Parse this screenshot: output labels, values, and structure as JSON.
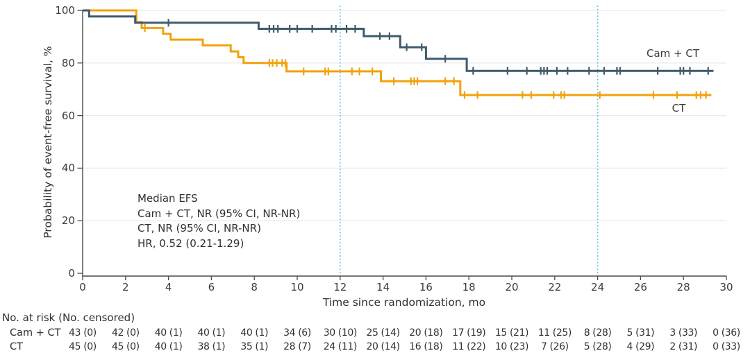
{
  "chart_data": {
    "type": "line",
    "subtype": "kaplan-meier-step",
    "title": "",
    "xlabel": "Time since randomization, mo",
    "ylabel": "Probability of event-free survival, %",
    "xlim": [
      0,
      30
    ],
    "ylim": [
      0,
      100
    ],
    "x_ticks": [
      0,
      2,
      4,
      6,
      8,
      10,
      12,
      14,
      16,
      18,
      20,
      22,
      24,
      26,
      28,
      30
    ],
    "y_ticks": [
      100,
      80,
      60,
      40,
      20,
      0
    ],
    "grid": "horizontal-light",
    "reference_lines_x": [
      12,
      24
    ],
    "reference_line_color": "#59bfe8",
    "series": [
      {
        "name": "Cam + CT",
        "color": "#3e5a6b",
        "steps": [
          [
            0,
            100
          ],
          [
            0.3,
            100
          ],
          [
            0.3,
            97.7
          ],
          [
            2.45,
            97.7
          ],
          [
            2.45,
            95.3
          ],
          [
            8.2,
            95.3
          ],
          [
            8.2,
            93.0
          ],
          [
            13.1,
            93.0
          ],
          [
            13.1,
            90.2
          ],
          [
            14.8,
            90.2
          ],
          [
            14.8,
            86.0
          ],
          [
            16.0,
            86.0
          ],
          [
            16.0,
            81.6
          ],
          [
            17.9,
            81.6
          ],
          [
            17.9,
            77.0
          ],
          [
            29.4,
            77.0
          ]
        ],
        "censor_marks": [
          [
            4.0,
            95.3
          ],
          [
            8.7,
            93.0
          ],
          [
            8.9,
            93.0
          ],
          [
            9.1,
            93.0
          ],
          [
            9.65,
            93.0
          ],
          [
            10.0,
            93.0
          ],
          [
            10.7,
            93.0
          ],
          [
            11.6,
            93.0
          ],
          [
            11.8,
            93.0
          ],
          [
            12.3,
            93.0
          ],
          [
            12.7,
            93.0
          ],
          [
            13.85,
            90.2
          ],
          [
            14.3,
            90.2
          ],
          [
            15.1,
            86.0
          ],
          [
            15.8,
            86.0
          ],
          [
            16.9,
            81.6
          ],
          [
            18.2,
            77.0
          ],
          [
            19.8,
            77.0
          ],
          [
            20.7,
            77.0
          ],
          [
            21.35,
            77.0
          ],
          [
            21.5,
            77.0
          ],
          [
            21.65,
            77.0
          ],
          [
            22.1,
            77.0
          ],
          [
            22.6,
            77.0
          ],
          [
            23.6,
            77.0
          ],
          [
            24.3,
            77.0
          ],
          [
            24.9,
            77.0
          ],
          [
            25.05,
            77.0
          ],
          [
            26.8,
            77.0
          ],
          [
            27.85,
            77.0
          ],
          [
            28.0,
            77.0
          ],
          [
            28.3,
            77.0
          ],
          [
            29.15,
            77.0
          ]
        ]
      },
      {
        "name": "CT",
        "color": "#f2a20a",
        "steps": [
          [
            0,
            100
          ],
          [
            2.5,
            100
          ],
          [
            2.5,
            95.6
          ],
          [
            2.75,
            95.6
          ],
          [
            2.75,
            93.3
          ],
          [
            3.75,
            93.3
          ],
          [
            3.75,
            91.1
          ],
          [
            4.1,
            91.1
          ],
          [
            4.1,
            88.9
          ],
          [
            5.6,
            88.9
          ],
          [
            5.6,
            86.7
          ],
          [
            6.9,
            86.7
          ],
          [
            6.9,
            84.4
          ],
          [
            7.25,
            84.4
          ],
          [
            7.25,
            82.2
          ],
          [
            7.5,
            82.2
          ],
          [
            7.5,
            80.0
          ],
          [
            9.5,
            80.0
          ],
          [
            9.5,
            76.8
          ],
          [
            13.9,
            76.8
          ],
          [
            13.9,
            73.1
          ],
          [
            17.6,
            73.1
          ],
          [
            17.6,
            67.8
          ],
          [
            29.3,
            67.8
          ]
        ],
        "censor_marks": [
          [
            2.9,
            93.3
          ],
          [
            8.7,
            80.0
          ],
          [
            8.85,
            80.0
          ],
          [
            9.05,
            80.0
          ],
          [
            9.3,
            80.0
          ],
          [
            9.45,
            80.0
          ],
          [
            10.3,
            76.8
          ],
          [
            11.3,
            76.8
          ],
          [
            11.45,
            76.8
          ],
          [
            12.55,
            76.8
          ],
          [
            12.9,
            76.8
          ],
          [
            13.5,
            76.8
          ],
          [
            14.5,
            73.1
          ],
          [
            15.3,
            73.1
          ],
          [
            15.45,
            73.1
          ],
          [
            15.6,
            73.1
          ],
          [
            16.9,
            73.1
          ],
          [
            17.3,
            73.1
          ],
          [
            17.8,
            67.8
          ],
          [
            18.4,
            67.8
          ],
          [
            20.5,
            67.8
          ],
          [
            20.9,
            67.8
          ],
          [
            21.95,
            67.8
          ],
          [
            22.3,
            67.8
          ],
          [
            22.45,
            67.8
          ],
          [
            24.1,
            67.8
          ],
          [
            26.6,
            67.8
          ],
          [
            27.7,
            67.8
          ],
          [
            28.6,
            67.8
          ],
          [
            28.8,
            67.8
          ],
          [
            29.05,
            67.8
          ]
        ]
      }
    ]
  },
  "figure": {
    "annotation": {
      "lines": [
        "Median EFS",
        "Cam + CT, NR (95% CI, NR-NR)",
        "CT, NR (95% CI, NR-NR)",
        "HR, 0.52 (0.21-1.29)"
      ]
    },
    "curve_labels": {
      "cam_ct": "Cam + CT",
      "ct": "CT"
    }
  },
  "risk_table": {
    "title": "No. at risk (No. censored)",
    "time_points": [
      0,
      2,
      4,
      6,
      8,
      10,
      12,
      14,
      16,
      18,
      20,
      22,
      24,
      26,
      28,
      30
    ],
    "rows": [
      {
        "label": "Cam + CT",
        "values": [
          "43 (0)",
          "42 (0)",
          "40 (1)",
          "40 (1)",
          "40 (1)",
          "34 (6)",
          "30 (10)",
          "25 (14)",
          "20 (18)",
          "17 (19)",
          "15 (21)",
          "11 (25)",
          "8 (28)",
          "5 (31)",
          "3 (33)",
          "0 (36)"
        ]
      },
      {
        "label": "CT",
        "values": [
          "45 (0)",
          "45 (0)",
          "40 (1)",
          "38 (1)",
          "35 (1)",
          "28 (7)",
          "24 (11)",
          "20 (14)",
          "16 (18)",
          "11 (22)",
          "10 (23)",
          "7 (26)",
          "5 (28)",
          "4 (29)",
          "2 (31)",
          "0 (33)"
        ]
      }
    ]
  }
}
